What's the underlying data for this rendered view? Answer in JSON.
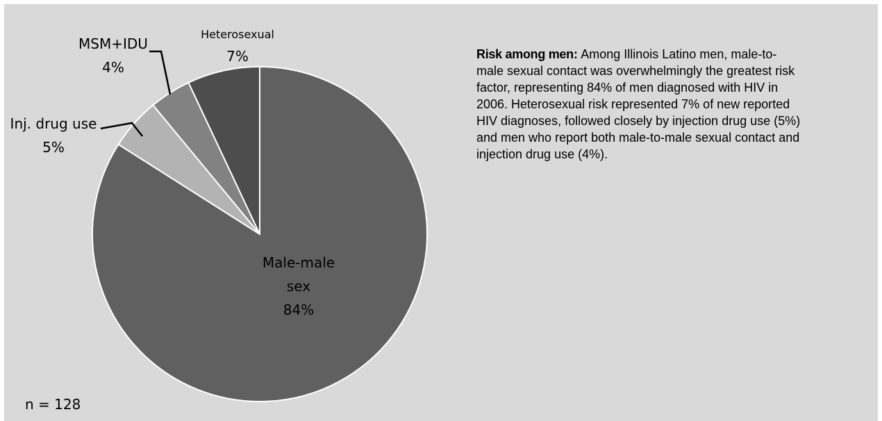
{
  "chart_data": {
    "type": "pie",
    "slices": [
      {
        "name": "Male-male sex",
        "label_lines": [
          "Male-male",
          "sex"
        ],
        "percent_label": "84%",
        "value": 84,
        "color": "#606060"
      },
      {
        "name": "Inj. drug use",
        "label_lines": [
          "Inj. drug use"
        ],
        "percent_label": "5%",
        "value": 5,
        "color": "#b3b3b3"
      },
      {
        "name": "MSM+IDU",
        "label_lines": [
          "MSM+IDU"
        ],
        "percent_label": "4%",
        "value": 4,
        "color": "#828282"
      },
      {
        "name": "Heterosexual",
        "label_lines": [
          "Heterosexual"
        ],
        "percent_label": "7%",
        "value": 7,
        "color": "#4d4d4d"
      }
    ],
    "legend": "none"
  },
  "sample_size": "n = 128",
  "description": {
    "lead": "Risk among men:",
    "body": "Among Illinois Latino men, male-to-male sexual contact was overwhelmingly the greatest risk factor, representing 84% of men diagnosed with HIV in 2006. Heterosexual risk represented 7% of new reported HIV diagnoses, followed closely by injection drug use (5%) and men who report both male-to-male sexual contact and injection drug use (4%)."
  }
}
